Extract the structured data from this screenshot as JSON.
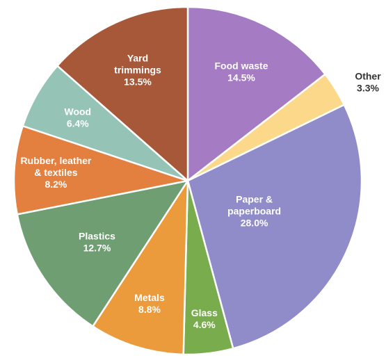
{
  "chart_data": {
    "type": "pie",
    "title": "",
    "start_angle": 0,
    "direction": "clockwise",
    "slices": [
      {
        "label": [
          "Food waste"
        ],
        "percent_text": "14.5%",
        "value": 14.5,
        "color": "#a57bc4"
      },
      {
        "label": [
          "Other"
        ],
        "percent_text": "3.3%",
        "value": 3.3,
        "color": "#fbd88a"
      },
      {
        "label": [
          "Paper &",
          "paperboard"
        ],
        "percent_text": "28.0%",
        "value": 28.0,
        "color": "#8f8cc9"
      },
      {
        "label": [
          "Glass"
        ],
        "percent_text": "4.6%",
        "value": 4.6,
        "color": "#79ac4c"
      },
      {
        "label": [
          "Metals"
        ],
        "percent_text": "8.8%",
        "value": 8.8,
        "color": "#eb9a3c"
      },
      {
        "label": [
          "Plastics"
        ],
        "percent_text": "12.7%",
        "value": 12.7,
        "color": "#6f9e72"
      },
      {
        "label": [
          "Rubber, leather",
          "& textiles"
        ],
        "percent_text": "8.2%",
        "value": 8.2,
        "color": "#e37f3f"
      },
      {
        "label": [
          "Wood"
        ],
        "percent_text": "6.4%",
        "value": 6.4,
        "color": "#95c4b6"
      },
      {
        "label": [
          "Yard",
          "trimmings"
        ],
        "percent_text": "13.5%",
        "value": 13.5,
        "color": "#a65839"
      }
    ]
  }
}
